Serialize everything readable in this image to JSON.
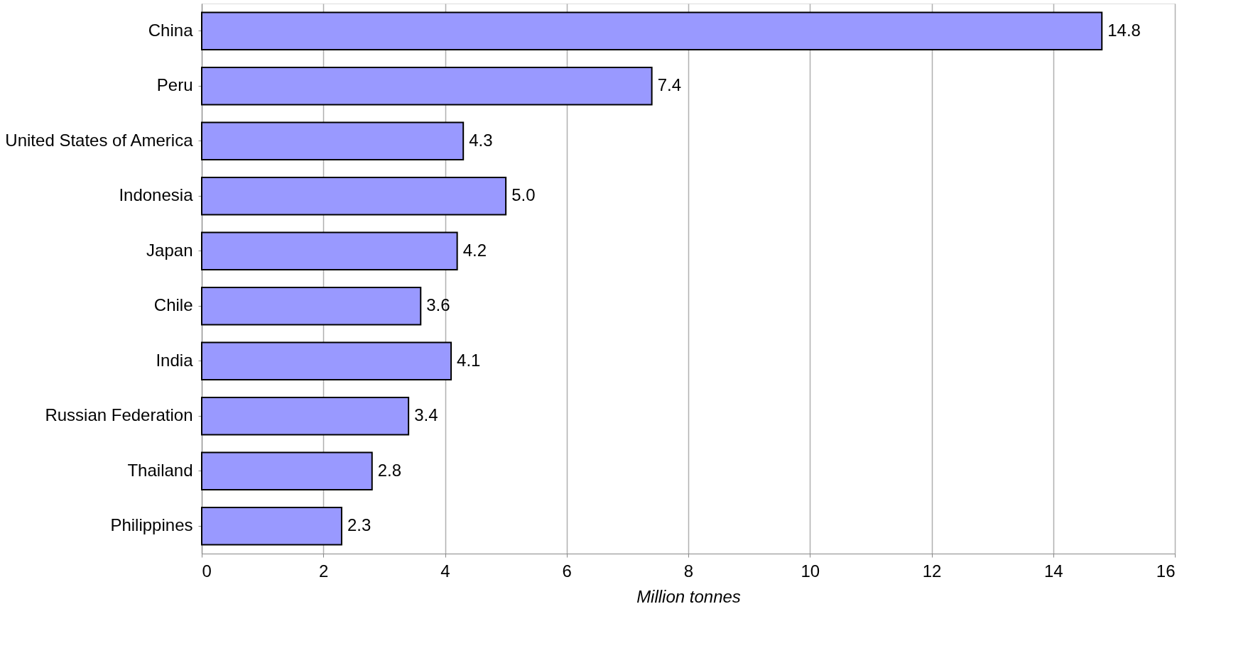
{
  "chart_data": {
    "type": "bar",
    "orientation": "horizontal",
    "categories": [
      "China",
      "Peru",
      "United States of America",
      "Indonesia",
      "Japan",
      "Chile",
      "India",
      "Russian Federation",
      "Thailand",
      "Philippines"
    ],
    "values": [
      14.8,
      7.4,
      4.3,
      5.0,
      4.2,
      3.6,
      4.1,
      3.4,
      2.8,
      2.3
    ],
    "value_labels": [
      "14.8",
      "7.4",
      "4.3",
      "5.0",
      "4.2",
      "3.6",
      "4.1",
      "3.4",
      "2.8",
      "2.3"
    ],
    "color": "#9999ff",
    "xlabel": "Million tonnes",
    "xlim": [
      0,
      16
    ],
    "xticks": [
      0,
      2,
      4,
      6,
      8,
      10,
      12,
      14,
      16
    ],
    "grid": "x"
  }
}
